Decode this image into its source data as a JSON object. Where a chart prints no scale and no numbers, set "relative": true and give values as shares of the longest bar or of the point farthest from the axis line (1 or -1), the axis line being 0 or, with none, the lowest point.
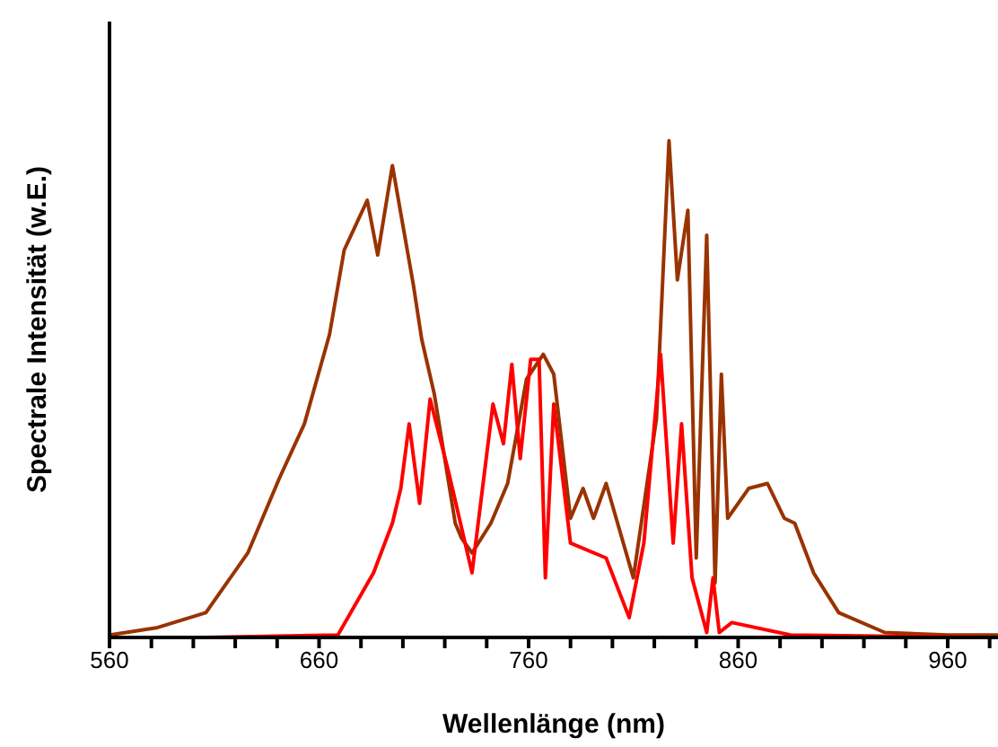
{
  "chart_data": {
    "type": "line",
    "xlabel": "Wellenlänge (nm)",
    "ylabel": "Spectrale Intensität (w.E.)",
    "relative": true,
    "grid": false,
    "legend": false,
    "marker": "none",
    "line_style": "solid",
    "xlim": [
      560,
      984
    ],
    "xticks": [
      560,
      {
        "value": 580,
        "label": null
      },
      {
        "value": 600,
        "label": null
      },
      {
        "value": 620,
        "label": null
      },
      {
        "value": 640,
        "label": null
      },
      660,
      {
        "value": 680,
        "label": null
      },
      {
        "value": 700,
        "label": null
      },
      {
        "value": 720,
        "label": null
      },
      {
        "value": 740,
        "label": null
      },
      760,
      {
        "value": 780,
        "label": null
      },
      {
        "value": 800,
        "label": null
      },
      {
        "value": 820,
        "label": null
      },
      {
        "value": 840,
        "label": null
      },
      860,
      {
        "value": 880,
        "label": null
      },
      {
        "value": 900,
        "label": null
      },
      {
        "value": 920,
        "label": null
      },
      {
        "value": 940,
        "label": null
      },
      960,
      {
        "value": 980,
        "label": null
      }
    ],
    "series": [
      {
        "color": "#993300",
        "x": [
          560,
          583,
          606,
          626,
          641,
          653,
          665,
          672,
          683,
          688,
          695,
          705,
          709,
          715,
          725,
          728,
          733,
          742,
          750,
          759,
          767,
          772,
          780,
          786,
          791,
          797,
          810,
          821,
          827,
          831,
          836,
          840,
          845,
          849,
          852,
          855,
          865,
          874,
          882,
          887,
          896,
          908,
          930,
          960,
          984
        ],
        "values": [
          0.005,
          0.02,
          0.05,
          0.17,
          0.32,
          0.43,
          0.61,
          0.78,
          0.88,
          0.77,
          0.95,
          0.71,
          0.6,
          0.49,
          0.23,
          0.2,
          0.17,
          0.23,
          0.31,
          0.52,
          0.57,
          0.53,
          0.24,
          0.3,
          0.24,
          0.31,
          0.12,
          0.44,
          1.0,
          0.72,
          0.86,
          0.16,
          0.81,
          0.11,
          0.53,
          0.24,
          0.3,
          0.31,
          0.24,
          0.23,
          0.13,
          0.05,
          0.01,
          0.005,
          0.005
        ]
      },
      {
        "color": "#ff0000",
        "x": [
          605,
          669,
          686,
          695,
          699,
          703,
          708,
          713,
          722,
          733,
          743,
          748,
          752,
          756,
          761,
          765,
          768,
          772,
          780,
          797,
          808,
          815,
          823,
          829,
          833,
          838,
          845,
          848,
          851,
          857,
          885,
          984
        ],
        "values": [
          0,
          0.005,
          0.13,
          0.23,
          0.3,
          0.43,
          0.27,
          0.48,
          0.33,
          0.13,
          0.47,
          0.39,
          0.55,
          0.36,
          0.56,
          0.56,
          0.12,
          0.47,
          0.19,
          0.16,
          0.04,
          0.19,
          0.57,
          0.19,
          0.43,
          0.12,
          0.01,
          0.12,
          0.01,
          0.03,
          0.005,
          0
        ]
      }
    ]
  }
}
